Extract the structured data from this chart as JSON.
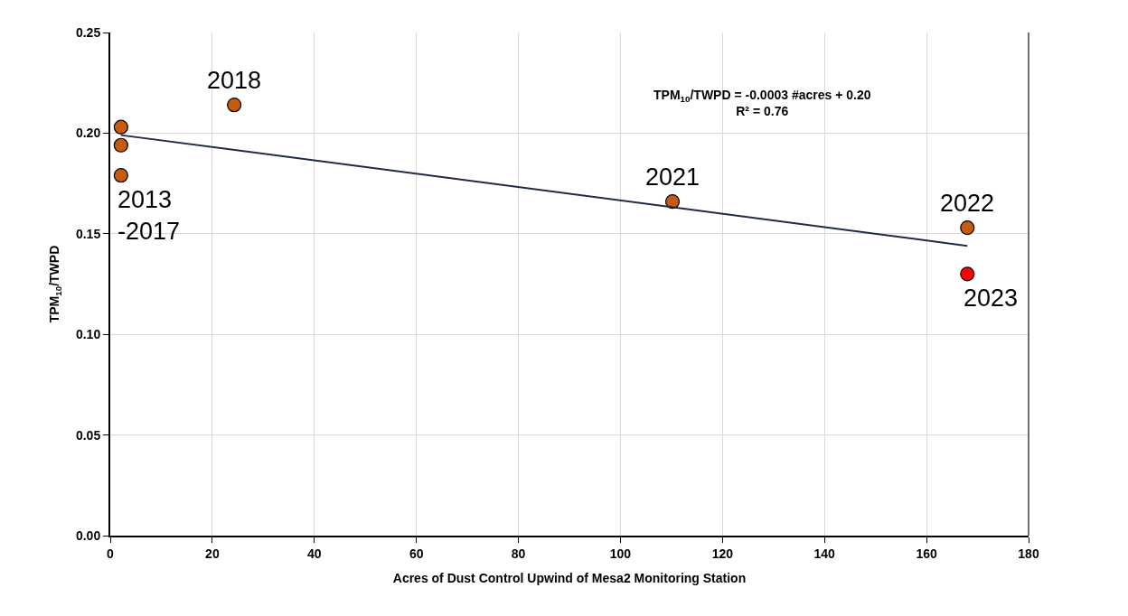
{
  "chart_data": {
    "type": "scatter",
    "xlabel": "Acres of Dust Control Upwind of Mesa2 Monitoring Station",
    "ylabel": "TPM$_{10}$/TWPD",
    "xlim": [
      0,
      180
    ],
    "xticks": [
      0,
      20,
      40,
      60,
      80,
      100,
      120,
      140,
      160,
      180
    ],
    "ylim": [
      0,
      0.25
    ],
    "yticks": [
      {
        "value": 0,
        "label": "0.00"
      },
      {
        "value": 0.05,
        "label": "0.05"
      },
      {
        "value": 0.1,
        "label": "0.10"
      },
      {
        "value": 0.15,
        "label": "0.15"
      },
      {
        "value": 0.2,
        "label": "0.20"
      },
      {
        "value": 0.25,
        "label": "0.25"
      }
    ],
    "grid": true,
    "legend": false,
    "series": [
      {
        "marker": "circle",
        "x": [
          2.1,
          2.1,
          2.1,
          24.3,
          110.2,
          168.0,
          168.0
        ],
        "values": [
          0.203,
          0.194,
          0.179,
          0.214,
          0.166,
          0.153,
          0.13
        ],
        "colors": [
          "#c55a11",
          "#c55a11",
          "#c55a11",
          "#c55a11",
          "#c55a11",
          "#c55a11",
          "#ff0000"
        ]
      },
      {
        "type": "line",
        "x": [
          2.1,
          168.0
        ],
        "values": [
          0.199,
          0.144
        ],
        "color": "#1f2a44",
        "line_style": "solid"
      }
    ],
    "annotations": [
      {
        "text": "2013\n-2017",
        "x": 2.1,
        "y": 0.179
      },
      {
        "text": "2018",
        "x": 24.3,
        "y": 0.214
      },
      {
        "text": "2021",
        "x": 110.2,
        "y": 0.166
      },
      {
        "text": "2022",
        "x": 168.0,
        "y": 0.153
      },
      {
        "text": "2023",
        "x": 168.0,
        "y": 0.13
      },
      "TPM$_{10}$/TWPD = -0.0003 #acres + 0.20\nR² = 0.76"
    ]
  }
}
